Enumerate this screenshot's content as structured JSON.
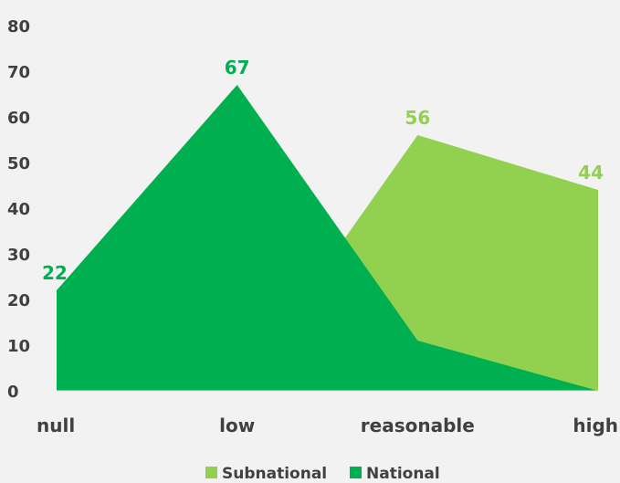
{
  "chart_data": {
    "type": "area",
    "categories": [
      "null",
      "low",
      "reasonable",
      "high"
    ],
    "series": [
      {
        "name": "Subnational",
        "values": [
          0,
          0,
          56,
          44
        ],
        "color": "#92d050",
        "labels": [
          null,
          null,
          "56",
          "44"
        ]
      },
      {
        "name": "National",
        "values": [
          22,
          67,
          11,
          0
        ],
        "color": "#00b050",
        "labels": [
          "22",
          "67",
          null,
          null
        ]
      }
    ],
    "ylim": [
      0,
      80
    ],
    "yticks": [
      0,
      10,
      20,
      30,
      40,
      50,
      60,
      70,
      80
    ],
    "grid": false,
    "legend": "bottom",
    "title": "",
    "xlabel": "",
    "ylabel": ""
  }
}
